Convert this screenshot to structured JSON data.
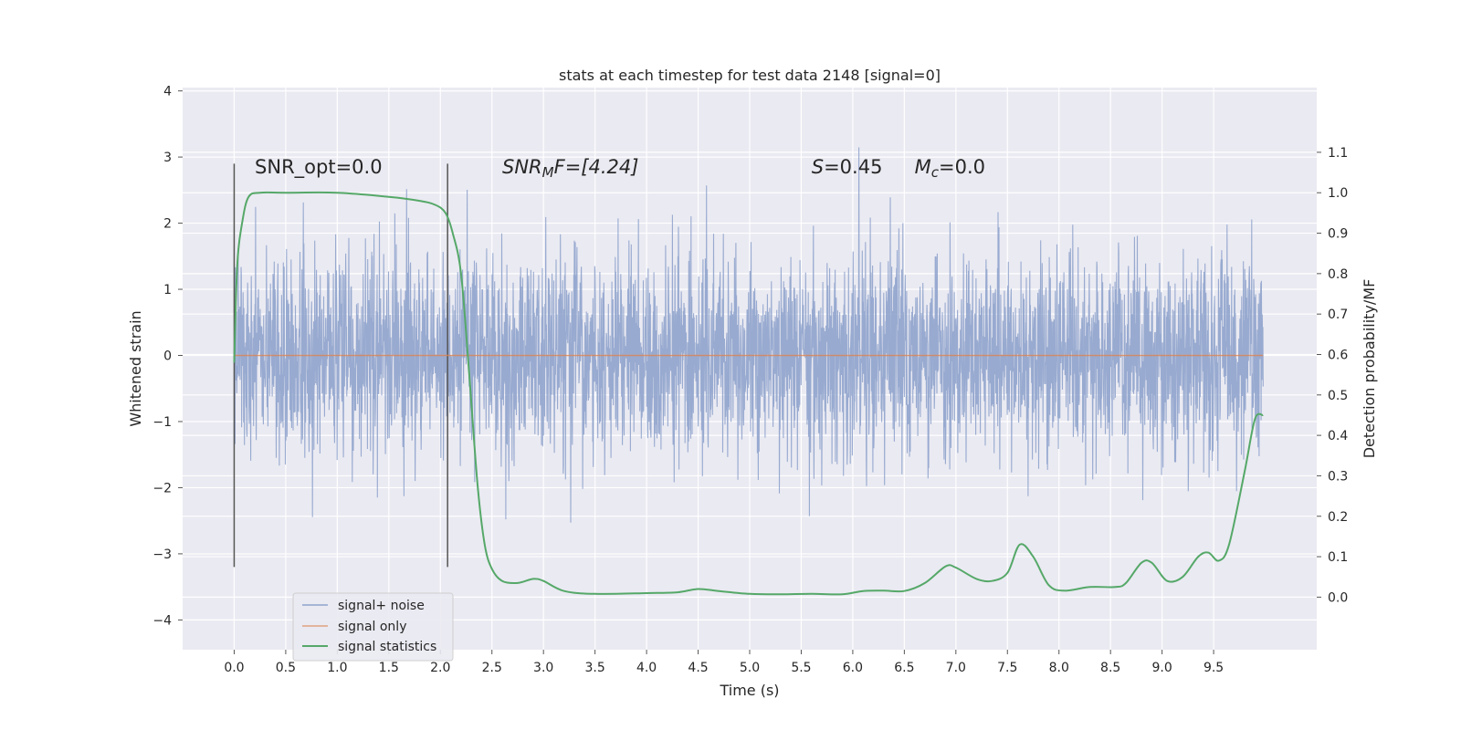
{
  "chart_data": {
    "type": "line",
    "title": "stats at each timestep for test data 2148 [signal=0]",
    "xlabel": "Time (s)",
    "ylabel": "Whitened strain",
    "ylabel_right": "Detection probability/MF",
    "xlim": [
      -0.5,
      10.5
    ],
    "ylim": [
      -4.45,
      4.05
    ],
    "ylim_right": [
      -0.13,
      1.26
    ],
    "x_ticks": [
      "0.0",
      "0.5",
      "1.0",
      "1.5",
      "2.0",
      "2.5",
      "3.0",
      "3.5",
      "4.0",
      "4.5",
      "5.0",
      "5.5",
      "6.0",
      "6.5",
      "7.0",
      "7.5",
      "8.0",
      "8.5",
      "9.0",
      "9.5"
    ],
    "y_ticks": [
      "−4",
      "−3",
      "−2",
      "−1",
      "0",
      "1",
      "2",
      "3",
      "4"
    ],
    "y_right_ticks": [
      "0.0",
      "0.1",
      "0.2",
      "0.3",
      "0.4",
      "0.5",
      "0.6",
      "0.7",
      "0.8",
      "0.9",
      "1.0",
      "1.1"
    ],
    "grid": true,
    "legend_position": "lower-left",
    "annotations": [
      {
        "text": "SNR_opt=0.0",
        "x": 0.2
      },
      {
        "text": "SNR",
        "sub": "M",
        "rest": "F=[4.24]",
        "x": 2.6
      },
      {
        "text": "S",
        "rest": "=0.45",
        "x": 5.6
      },
      {
        "text": "M",
        "sub": "c",
        "rest": "=0.0",
        "x": 6.6
      }
    ],
    "annotation_y": 2.85,
    "vlines": [
      {
        "x": 0.0,
        "y_range": [
          -3.2,
          2.9
        ]
      },
      {
        "x": 2.07,
        "y_range": [
          -3.2,
          2.9
        ]
      }
    ],
    "series": [
      {
        "name": "signal+ noise",
        "color": "#8fa3cc",
        "x_range": [
          0.0,
          9.98
        ],
        "noise_std": 0.78,
        "seed": 2148
      },
      {
        "name": "signal only",
        "color": "#dd8452",
        "x": [
          0.0,
          9.98
        ],
        "y": [
          0.0,
          0.0
        ]
      },
      {
        "name": "signal statistics",
        "color": "#55a868",
        "axis": "right",
        "x": [
          0.0,
          0.03,
          0.08,
          0.14,
          0.25,
          0.5,
          1.0,
          1.5,
          1.8,
          1.95,
          2.05,
          2.12,
          2.2,
          2.28,
          2.36,
          2.43,
          2.5,
          2.6,
          2.75,
          2.9,
          3.0,
          3.2,
          3.5,
          4.0,
          4.3,
          4.5,
          4.7,
          5.0,
          5.3,
          5.6,
          5.9,
          6.1,
          6.3,
          6.5,
          6.7,
          6.9,
          7.0,
          7.2,
          7.35,
          7.5,
          7.62,
          7.75,
          7.9,
          8.05,
          8.3,
          8.55,
          8.65,
          8.8,
          8.9,
          9.05,
          9.2,
          9.35,
          9.45,
          9.55,
          9.65,
          9.8,
          9.9,
          9.98
        ],
        "y": [
          0.58,
          0.82,
          0.93,
          0.99,
          1.0,
          1.0,
          1.0,
          0.99,
          0.98,
          0.97,
          0.95,
          0.9,
          0.8,
          0.55,
          0.28,
          0.13,
          0.07,
          0.04,
          0.035,
          0.045,
          0.04,
          0.015,
          0.008,
          0.01,
          0.012,
          0.02,
          0.015,
          0.008,
          0.007,
          0.008,
          0.007,
          0.015,
          0.016,
          0.015,
          0.035,
          0.076,
          0.073,
          0.045,
          0.04,
          0.06,
          0.13,
          0.1,
          0.03,
          0.016,
          0.025,
          0.025,
          0.035,
          0.085,
          0.085,
          0.04,
          0.05,
          0.1,
          0.11,
          0.09,
          0.13,
          0.31,
          0.44,
          0.45
        ]
      }
    ]
  }
}
